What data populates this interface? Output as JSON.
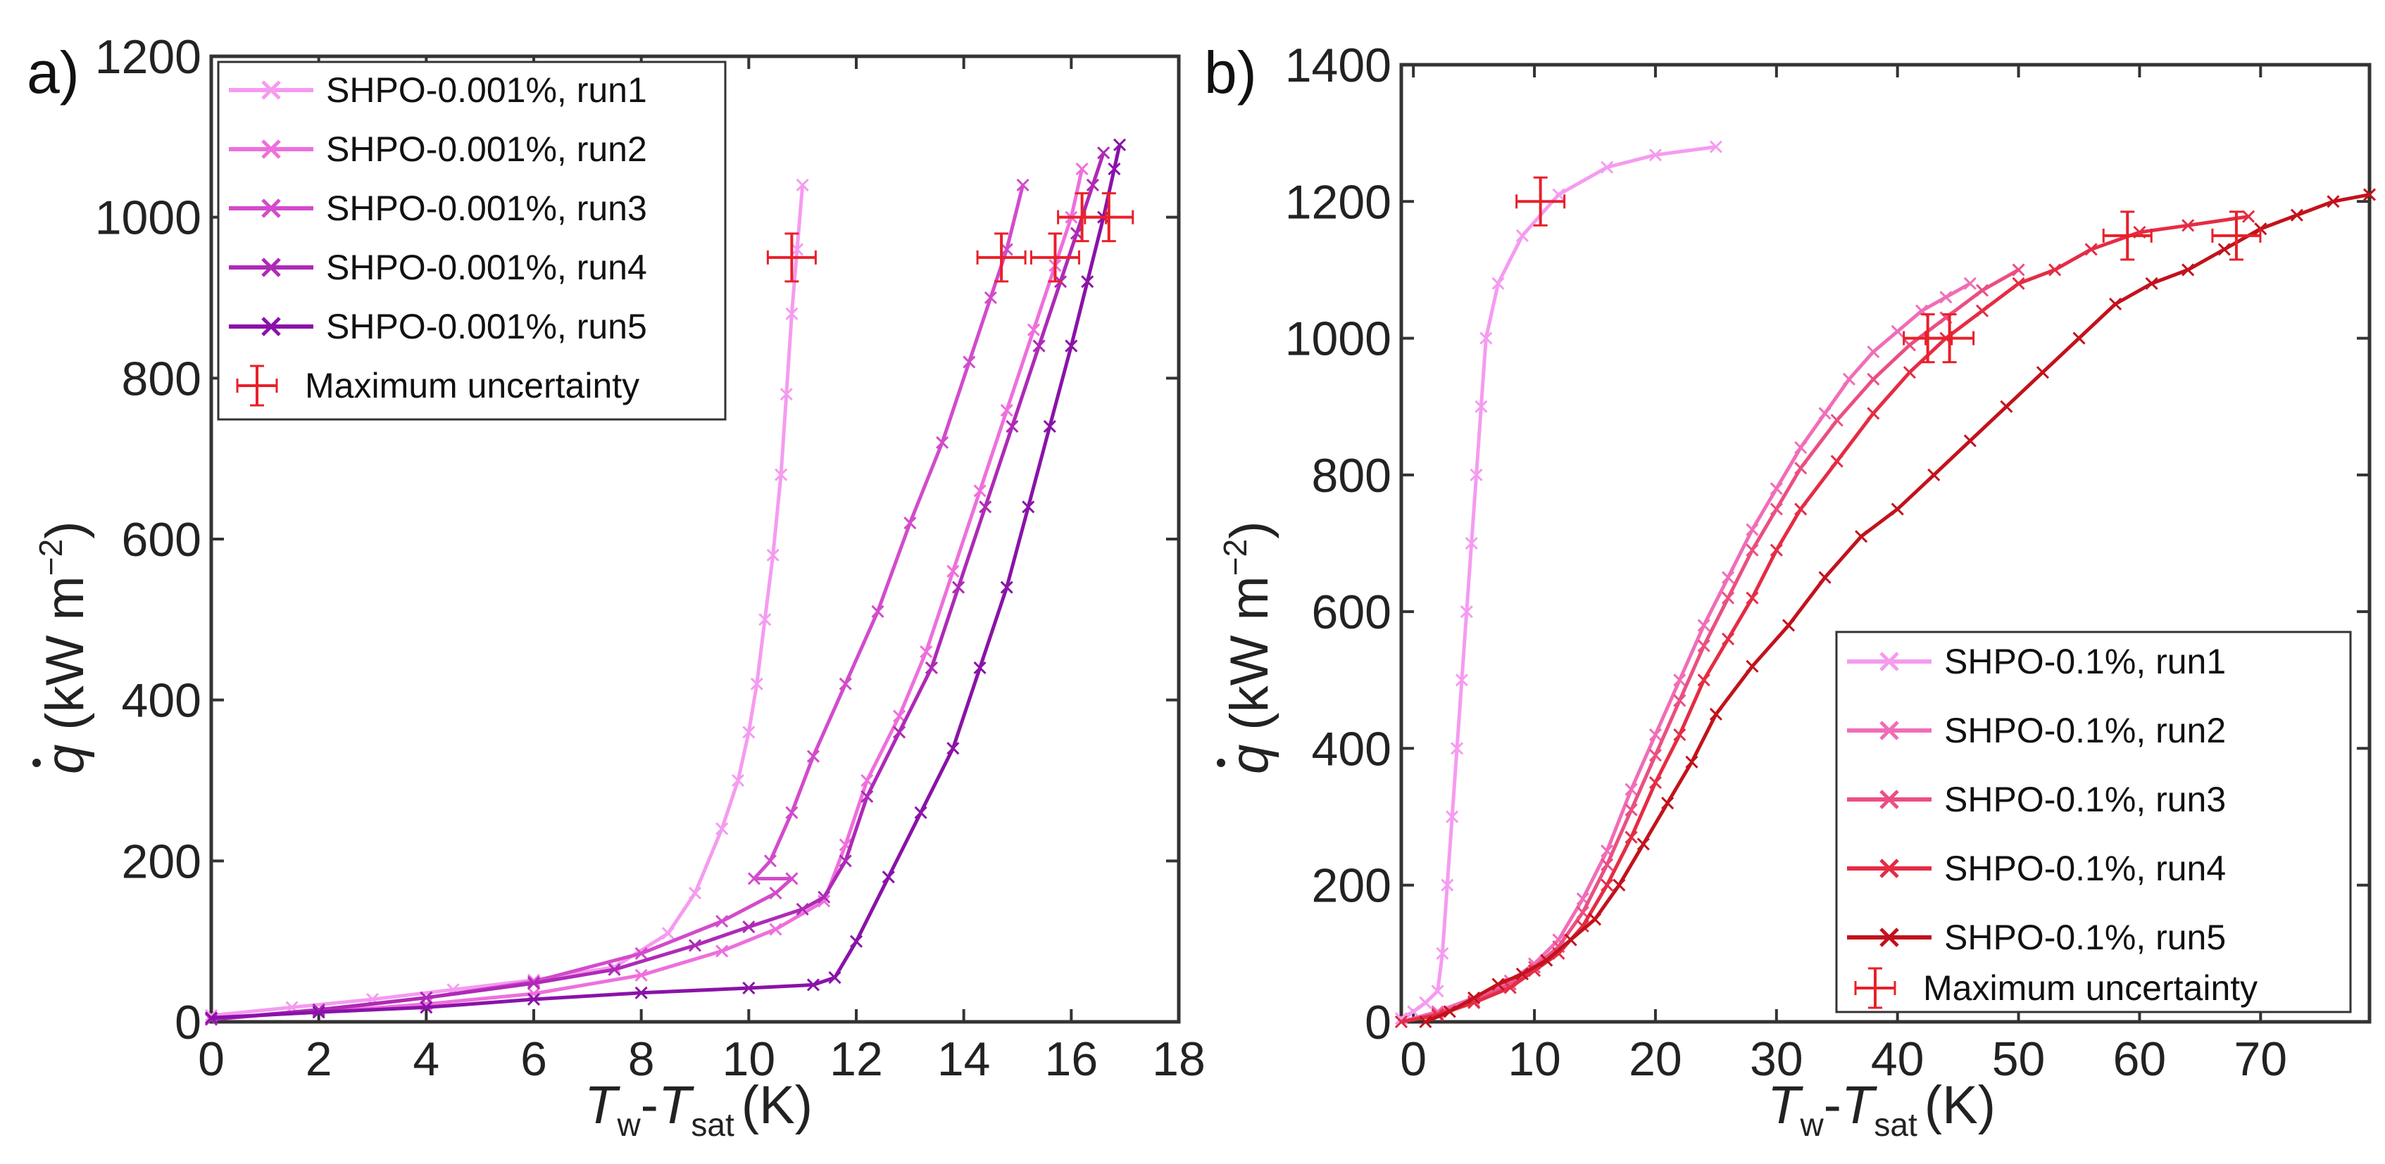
{
  "chart_data": [
    {
      "type": "line",
      "panel_label": "a)",
      "xlabel": {
        "main": "T",
        "w": "w",
        "dash": "-",
        "main2": "T",
        "sat": "sat",
        "unit": "(K)"
      },
      "ylabel": {
        "q": "q",
        "unit": "(kW m",
        "exp": "−2",
        "close": ")"
      },
      "xlim": [
        0,
        18
      ],
      "ylim": [
        0,
        1200
      ],
      "xticks": [
        "0",
        "2",
        "4",
        "6",
        "8",
        "10",
        "12",
        "14",
        "16",
        "18"
      ],
      "yticks": [
        "0",
        "200",
        "400",
        "600",
        "800",
        "1000",
        "1200"
      ],
      "legend_position": "upper-left",
      "series": [
        {
          "name": "SHPO-0.001%, run1",
          "color": "#F59BF0",
          "points": [
            [
              0,
              8
            ],
            [
              1.5,
              18
            ],
            [
              3,
              28
            ],
            [
              4.5,
              40
            ],
            [
              6,
              52
            ],
            [
              7.5,
              68
            ],
            [
              8.5,
              110
            ],
            [
              9,
              160
            ],
            [
              9.5,
              240
            ],
            [
              9.8,
              300
            ],
            [
              10,
              360
            ],
            [
              10.15,
              420
            ],
            [
              10.3,
              500
            ],
            [
              10.45,
              580
            ],
            [
              10.6,
              680
            ],
            [
              10.7,
              780
            ],
            [
              10.8,
              880
            ],
            [
              10.9,
              960
            ],
            [
              11,
              1040
            ]
          ]
        },
        {
          "name": "SHPO-0.001%, run2",
          "color": "#EE6FDC",
          "points": [
            [
              0,
              5
            ],
            [
              2,
              12
            ],
            [
              4,
              22
            ],
            [
              6,
              35
            ],
            [
              8,
              58
            ],
            [
              9.5,
              88
            ],
            [
              10.5,
              115
            ],
            [
              11.4,
              150
            ],
            [
              11.8,
              220
            ],
            [
              12.2,
              300
            ],
            [
              12.8,
              380
            ],
            [
              13.3,
              460
            ],
            [
              13.8,
              560
            ],
            [
              14.3,
              660
            ],
            [
              14.8,
              760
            ],
            [
              15.3,
              860
            ],
            [
              15.7,
              940
            ],
            [
              16,
              1000
            ],
            [
              16.2,
              1060
            ]
          ]
        },
        {
          "name": "SHPO-0.001%, run3",
          "color": "#D24BCB",
          "points": [
            [
              0,
              3
            ],
            [
              2,
              14
            ],
            [
              4,
              30
            ],
            [
              6,
              50
            ],
            [
              8,
              85
            ],
            [
              9.5,
              125
            ],
            [
              10.5,
              160
            ],
            [
              10.8,
              178
            ],
            [
              10.1,
              178
            ],
            [
              10.4,
              200
            ],
            [
              10.8,
              260
            ],
            [
              11.2,
              330
            ],
            [
              11.8,
              420
            ],
            [
              12.4,
              510
            ],
            [
              13,
              620
            ],
            [
              13.6,
              720
            ],
            [
              14.1,
              820
            ],
            [
              14.5,
              900
            ],
            [
              14.8,
              960
            ],
            [
              15.1,
              1040
            ]
          ]
        },
        {
          "name": "SHPO-0.001%, run4",
          "color": "#AE2AB6",
          "points": [
            [
              0,
              3
            ],
            [
              2,
              15
            ],
            [
              4,
              30
            ],
            [
              6,
              48
            ],
            [
              7.5,
              65
            ],
            [
              9,
              95
            ],
            [
              10,
              118
            ],
            [
              11,
              140
            ],
            [
              11.4,
              155
            ],
            [
              11.8,
              200
            ],
            [
              12.2,
              280
            ],
            [
              12.8,
              360
            ],
            [
              13.4,
              440
            ],
            [
              13.9,
              540
            ],
            [
              14.4,
              640
            ],
            [
              14.9,
              740
            ],
            [
              15.4,
              840
            ],
            [
              15.8,
              920
            ],
            [
              16.1,
              980
            ],
            [
              16.4,
              1040
            ],
            [
              16.6,
              1080
            ]
          ]
        },
        {
          "name": "SHPO-0.001%, run5",
          "color": "#8A12A8",
          "points": [
            [
              0,
              5
            ],
            [
              2,
              12
            ],
            [
              4,
              18
            ],
            [
              6,
              28
            ],
            [
              8,
              36
            ],
            [
              10,
              42
            ],
            [
              11.2,
              46
            ],
            [
              11.6,
              55
            ],
            [
              12,
              100
            ],
            [
              12.6,
              180
            ],
            [
              13.2,
              260
            ],
            [
              13.8,
              340
            ],
            [
              14.3,
              440
            ],
            [
              14.8,
              540
            ],
            [
              15.2,
              640
            ],
            [
              15.6,
              740
            ],
            [
              16,
              840
            ],
            [
              16.3,
              920
            ],
            [
              16.6,
              1000
            ],
            [
              16.8,
              1060
            ],
            [
              16.9,
              1090
            ]
          ]
        }
      ],
      "uncertainty_marks": [
        [
          10.8,
          950
        ],
        [
          14.7,
          950
        ],
        [
          15.7,
          950
        ],
        [
          16.2,
          1000
        ],
        [
          16.7,
          1000
        ]
      ],
      "uncertainty_color": "#E8202A",
      "uncertainty_label": "Maximum uncertainty"
    },
    {
      "type": "line",
      "panel_label": "b)",
      "xlabel": {
        "main": "T",
        "w": "w",
        "dash": "-",
        "main2": "T",
        "sat": "sat",
        "unit": "(K)"
      },
      "ylabel": {
        "q": "q",
        "unit": "(kW m",
        "exp": "−2",
        "close": ")"
      },
      "xlim": [
        -1,
        79
      ],
      "ylim": [
        0,
        1400
      ],
      "xticks": [
        "0",
        "10",
        "20",
        "30",
        "40",
        "50",
        "60",
        "70"
      ],
      "yticks": [
        "0",
        "200",
        "400",
        "600",
        "800",
        "1000",
        "1200",
        "1400"
      ],
      "legend_position": "lower-right",
      "series": [
        {
          "name": "SHPO-0.1%, run1",
          "color": "#F59BF0",
          "points": [
            [
              -1,
              5
            ],
            [
              0,
              15
            ],
            [
              1,
              28
            ],
            [
              2,
              45
            ],
            [
              2.4,
              100
            ],
            [
              2.8,
              200
            ],
            [
              3.2,
              300
            ],
            [
              3.6,
              400
            ],
            [
              4,
              500
            ],
            [
              4.4,
              600
            ],
            [
              4.8,
              700
            ],
            [
              5.2,
              800
            ],
            [
              5.6,
              900
            ],
            [
              6,
              1000
            ],
            [
              7,
              1080
            ],
            [
              9,
              1150
            ],
            [
              12,
              1210
            ],
            [
              16,
              1250
            ],
            [
              20,
              1268
            ],
            [
              25,
              1280
            ]
          ]
        },
        {
          "name": "SHPO-0.1%, run2",
          "color": "#F06DB8",
          "points": [
            [
              -1,
              0
            ],
            [
              2,
              15
            ],
            [
              5,
              35
            ],
            [
              8,
              60
            ],
            [
              10,
              85
            ],
            [
              12,
              120
            ],
            [
              14,
              180
            ],
            [
              16,
              250
            ],
            [
              18,
              340
            ],
            [
              20,
              420
            ],
            [
              22,
              500
            ],
            [
              24,
              580
            ],
            [
              26,
              650
            ],
            [
              28,
              720
            ],
            [
              30,
              780
            ],
            [
              32,
              840
            ],
            [
              34,
              890
            ],
            [
              36,
              940
            ],
            [
              38,
              980
            ],
            [
              40,
              1010
            ],
            [
              42,
              1040
            ],
            [
              44,
              1060
            ],
            [
              46,
              1080
            ]
          ]
        },
        {
          "name": "SHPO-0.1%, run3",
          "color": "#EA4F82",
          "points": [
            [
              -1,
              0
            ],
            [
              2,
              12
            ],
            [
              5,
              30
            ],
            [
              8,
              55
            ],
            [
              10,
              80
            ],
            [
              12,
              110
            ],
            [
              14,
              160
            ],
            [
              16,
              230
            ],
            [
              18,
              310
            ],
            [
              20,
              390
            ],
            [
              22,
              470
            ],
            [
              24,
              550
            ],
            [
              26,
              620
            ],
            [
              28,
              690
            ],
            [
              30,
              750
            ],
            [
              32,
              810
            ],
            [
              35,
              880
            ],
            [
              38,
              940
            ],
            [
              41,
              990
            ],
            [
              44,
              1030
            ],
            [
              47,
              1070
            ],
            [
              50,
              1100
            ]
          ]
        },
        {
          "name": "SHPO-0.1%, run4",
          "color": "#E52C44",
          "points": [
            [
              -1,
              0
            ],
            [
              2,
              10
            ],
            [
              5,
              28
            ],
            [
              8,
              50
            ],
            [
              10,
              75
            ],
            [
              12,
              100
            ],
            [
              14,
              140
            ],
            [
              16,
              200
            ],
            [
              18,
              270
            ],
            [
              20,
              350
            ],
            [
              22,
              420
            ],
            [
              24,
              500
            ],
            [
              26,
              560
            ],
            [
              28,
              620
            ],
            [
              30,
              690
            ],
            [
              32,
              750
            ],
            [
              35,
              820
            ],
            [
              38,
              890
            ],
            [
              41,
              950
            ],
            [
              44,
              1000
            ],
            [
              47,
              1040
            ],
            [
              50,
              1080
            ],
            [
              53,
              1100
            ],
            [
              56,
              1130
            ],
            [
              60,
              1155
            ],
            [
              64,
              1165
            ],
            [
              69,
              1178
            ]
          ]
        },
        {
          "name": "SHPO-0.1%, run5",
          "color": "#C2121C",
          "points": [
            [
              1,
              0
            ],
            [
              3,
              15
            ],
            [
              5,
              35
            ],
            [
              7,
              55
            ],
            [
              9,
              70
            ],
            [
              11,
              90
            ],
            [
              13,
              120
            ],
            [
              15,
              150
            ],
            [
              17,
              200
            ],
            [
              19,
              260
            ],
            [
              21,
              320
            ],
            [
              23,
              380
            ],
            [
              25,
              450
            ],
            [
              28,
              520
            ],
            [
              31,
              580
            ],
            [
              34,
              650
            ],
            [
              37,
              710
            ],
            [
              40,
              750
            ],
            [
              43,
              800
            ],
            [
              46,
              850
            ],
            [
              49,
              900
            ],
            [
              52,
              950
            ],
            [
              55,
              1000
            ],
            [
              58,
              1050
            ],
            [
              61,
              1080
            ],
            [
              64,
              1100
            ],
            [
              67,
              1130
            ],
            [
              70,
              1160
            ],
            [
              73,
              1180
            ],
            [
              76,
              1200
            ],
            [
              79,
              1210
            ]
          ]
        }
      ],
      "uncertainty_marks": [
        [
          10.5,
          1200
        ],
        [
          42.5,
          1000
        ],
        [
          44.3,
          1000
        ],
        [
          59,
          1150
        ],
        [
          68,
          1150
        ]
      ],
      "uncertainty_color": "#E8202A",
      "uncertainty_label": "Maximum uncertainty"
    }
  ]
}
